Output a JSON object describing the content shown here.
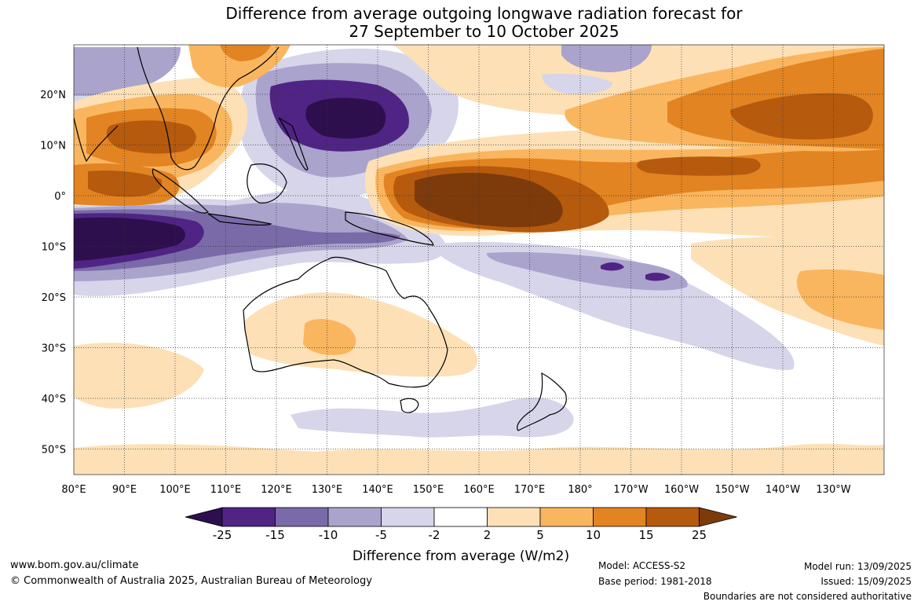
{
  "title": {
    "line1": "Difference from average outgoing longwave radiation forecast for",
    "line2": "27 September to 10 October 2025"
  },
  "axes": {
    "lon_labels": [
      "80°E",
      "90°E",
      "100°E",
      "110°E",
      "120°E",
      "130°E",
      "140°E",
      "150°E",
      "160°E",
      "170°E",
      "180°",
      "170°W",
      "160°W",
      "150°W",
      "140°W",
      "130°W"
    ],
    "lat_labels": [
      "20°N",
      "10°N",
      "0°",
      "10°S",
      "20°S",
      "30°S",
      "40°S",
      "50°S"
    ]
  },
  "colorbar": {
    "ticks": [
      "-25",
      "-15",
      "-10",
      "-5",
      "-2",
      "2",
      "5",
      "10",
      "15",
      "25"
    ],
    "label": "Difference from average (W/m2)",
    "colors": [
      "#2d0f4e",
      "#4f2484",
      "#7a6aa8",
      "#aaa3cc",
      "#d6d5ea",
      "#ffffff",
      "#fde0b6",
      "#f9b65f",
      "#e28422",
      "#b65a0e",
      "#7d3b0c"
    ]
  },
  "footer": {
    "website": "www.bom.gov.au/climate",
    "copyright": "© Commonwealth of Australia 2025, Australian Bureau of Meteorology",
    "model": "Model: ACCESS-S2",
    "base_period": "Base period: 1981-2018",
    "model_run": "Model run: 13/09/2025",
    "issued": "Issued: 15/09/2025",
    "disclaimer": "Boundaries are not considered authoritative"
  }
}
